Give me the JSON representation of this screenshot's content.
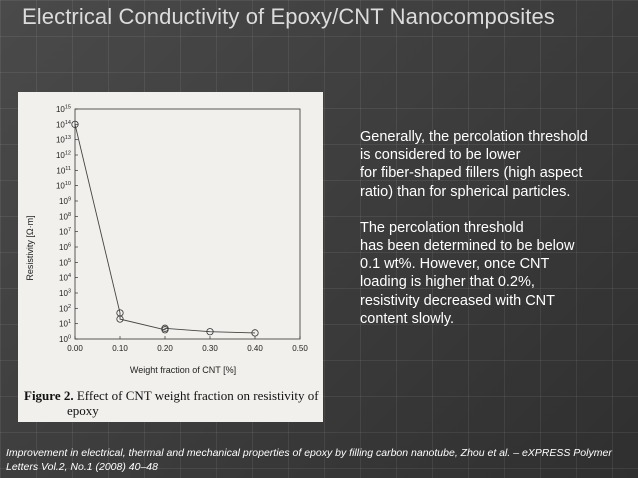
{
  "slide": {
    "title": "Electrical Conductivity of Epoxy/CNT Nanocomposites"
  },
  "paragraphs": [
    [
      "Generally, the percolation threshold",
      "is considered to be lower",
      "for fiber-shaped fillers (high aspect",
      "ratio) than for spherical particles."
    ],
    [
      "The percolation threshold",
      "has been determined to be below",
      "0.1 wt%. However, once CNT",
      "loading is higher that 0.2%,",
      "resistivity decreased with CNT",
      "content slowly."
    ]
  ],
  "figure": {
    "caption_label": "Figure 2.",
    "caption_text": "Effect of CNT weight fraction on resistivity of",
    "caption_text_2": "epoxy"
  },
  "citation": "Improvement in electrical, thermal and mechanical properties of epoxy by filling carbon nanotube, Zhou et al. – eXPRESS Polymer Letters Vol.2, No.1 (2008) 40–48",
  "chart_data": {
    "type": "line",
    "xlabel": "Weight fraction of CNT [%]",
    "ylabel": "Resistivity [Ω·m]",
    "xlim": [
      0,
      0.5
    ],
    "ylim": [
      0,
      15
    ],
    "y_scale": "log",
    "x_ticks": [
      "0.00",
      "0.10",
      "0.20",
      "0.30",
      "0.40",
      "0.50"
    ],
    "y_ticks": [
      0,
      1,
      2,
      3,
      4,
      5,
      6,
      7,
      8,
      9,
      10,
      11,
      12,
      13,
      14,
      15
    ],
    "grid": false,
    "series": [
      {
        "x": [
          0.0,
          0.1,
          0.1,
          0.2,
          0.2,
          0.3,
          0.4
        ],
        "y": [
          100000000000000.0,
          50.0,
          20.0,
          4,
          5,
          3,
          2.5
        ]
      }
    ]
  }
}
